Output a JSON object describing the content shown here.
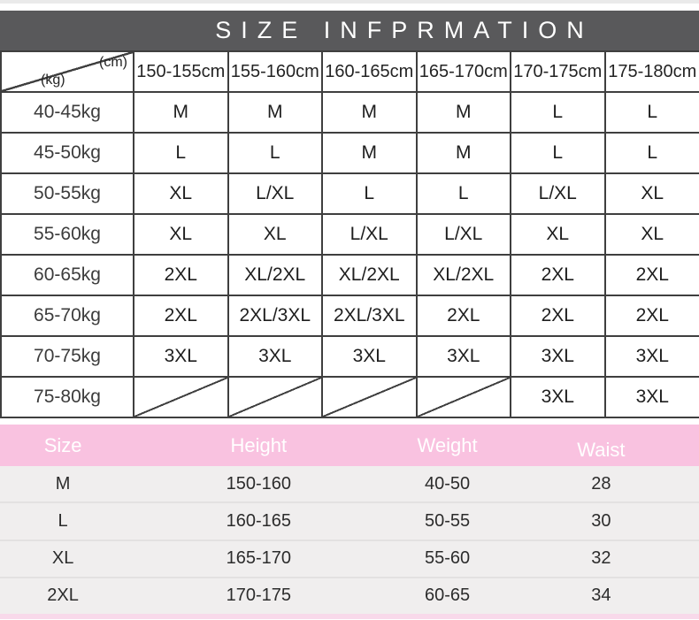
{
  "title": "SIZE INFPRMATION",
  "colors": {
    "banner_bg": "#59595b",
    "table_border": "#3f3f3f",
    "pink_header": "#f9c2e0",
    "row_bg": "#f0eeee",
    "row_divider": "#e3e1e1",
    "bottom_strip": "#f8d9ea"
  },
  "chart_data": [
    {
      "type": "table",
      "title": "SIZE INFPRMATION",
      "corner_top": "(cm)",
      "corner_bottom": "(kg)",
      "columns": [
        "150-155cm",
        "155-160cm",
        "160-165cm",
        "165-170cm",
        "170-175cm",
        "175-180cm"
      ],
      "rows": [
        {
          "label": "40-45kg",
          "cells": [
            "M",
            "M",
            "M",
            "M",
            "L",
            "L"
          ]
        },
        {
          "label": "45-50kg",
          "cells": [
            "L",
            "L",
            "M",
            "M",
            "L",
            "L"
          ]
        },
        {
          "label": "50-55kg",
          "cells": [
            "XL",
            "L/XL",
            "L",
            "L",
            "L/XL",
            "XL"
          ]
        },
        {
          "label": "55-60kg",
          "cells": [
            "XL",
            "XL",
            "L/XL",
            "L/XL",
            "XL",
            "XL"
          ]
        },
        {
          "label": "60-65kg",
          "cells": [
            "2XL",
            "XL/2XL",
            "XL/2XL",
            "XL/2XL",
            "2XL",
            "2XL"
          ]
        },
        {
          "label": "65-70kg",
          "cells": [
            "2XL",
            "2XL/3XL",
            "2XL/3XL",
            "2XL",
            "2XL",
            "2XL"
          ]
        },
        {
          "label": "70-75kg",
          "cells": [
            "3XL",
            "3XL",
            "3XL",
            "3XL",
            "3XL",
            "3XL"
          ]
        },
        {
          "label": "75-80kg",
          "cells": [
            null,
            null,
            null,
            null,
            "3XL",
            "3XL"
          ]
        }
      ]
    },
    {
      "type": "table",
      "columns": [
        "Size",
        "Height",
        "Weight",
        "Waist"
      ],
      "rows": [
        [
          "M",
          "150-160",
          "40-50",
          "28"
        ],
        [
          "L",
          "160-165",
          "50-55",
          "30"
        ],
        [
          "XL",
          "165-170",
          "55-60",
          "32"
        ],
        [
          "2XL",
          "170-175",
          "60-65",
          "34"
        ]
      ]
    }
  ]
}
